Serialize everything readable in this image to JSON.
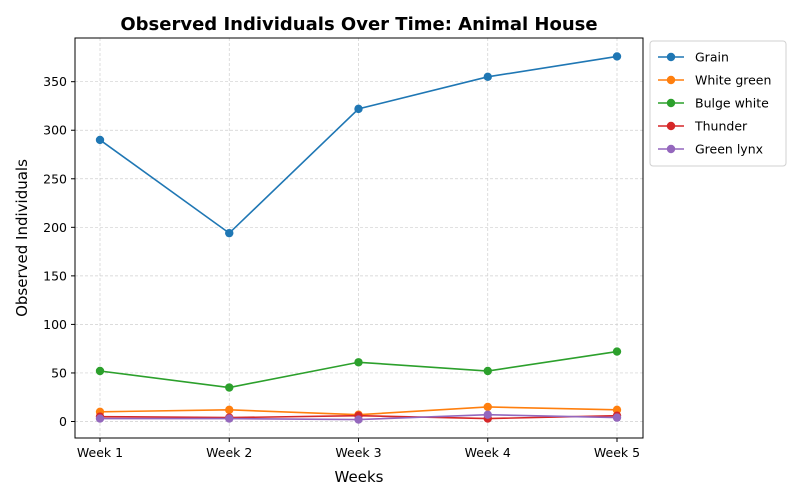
{
  "chart_data": {
    "type": "line",
    "title": "Observed Individuals Over Time: Animal House",
    "xlabel": "Weeks",
    "ylabel": "Observed Individuals",
    "categories": [
      "Week 1",
      "Week 2",
      "Week 3",
      "Week 4",
      "Week 5"
    ],
    "ylim": [
      -17,
      395
    ],
    "yticks": [
      0,
      50,
      100,
      150,
      200,
      250,
      300,
      350
    ],
    "grid": true,
    "legend_position": "outside-top-right",
    "series": [
      {
        "name": "Grain",
        "color": "#1f77b4",
        "values": [
          290,
          194,
          322,
          355,
          376
        ]
      },
      {
        "name": "White green",
        "color": "#ff7f0e",
        "values": [
          10,
          12,
          7,
          15,
          12
        ]
      },
      {
        "name": "Bulge white",
        "color": "#2ca02c",
        "values": [
          52,
          35,
          61,
          52,
          72
        ]
      },
      {
        "name": "Thunder",
        "color": "#d62728",
        "values": [
          5,
          4,
          6,
          3,
          6
        ]
      },
      {
        "name": "Green lynx",
        "color": "#9467bd",
        "values": [
          3,
          3,
          2,
          7,
          4
        ]
      }
    ]
  }
}
